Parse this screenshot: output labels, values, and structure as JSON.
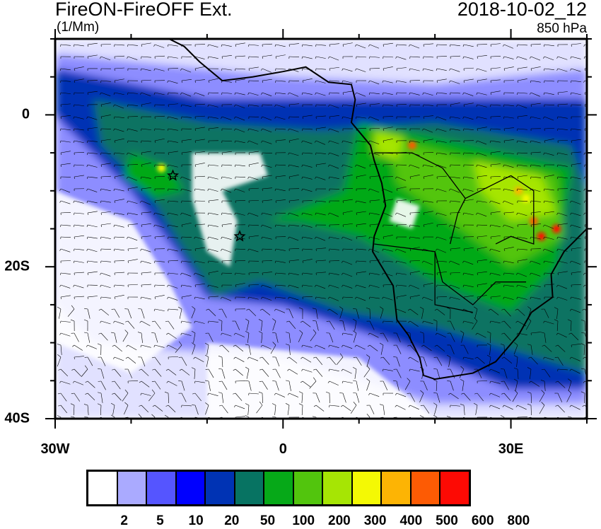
{
  "title": "FireON-FireOFF Ext.",
  "units": "(1/Mm)",
  "datetime": "2018-10-02_12",
  "level": "850 hPa",
  "map": {
    "lon_range": [
      -30,
      40
    ],
    "lat_range": [
      -40,
      10
    ],
    "x_ticks": [
      {
        "lon": -30,
        "label": "30W"
      },
      {
        "lon": 0,
        "label": "0"
      },
      {
        "lon": 30,
        "label": "30E"
      }
    ],
    "y_ticks": [
      {
        "lat": 0,
        "label": "0"
      },
      {
        "lat": -20,
        "label": "20S"
      },
      {
        "lat": -40,
        "label": "40S"
      }
    ],
    "markers": [
      {
        "type": "star",
        "lon": -14.5,
        "lat": -8
      },
      {
        "type": "star",
        "lon": -5.7,
        "lat": -16
      }
    ],
    "overlay": "wind barbs"
  },
  "colorbar": {
    "colors": [
      "#ffffff",
      "#aaaaff",
      "#5555ff",
      "#0000ff",
      "#0033b4",
      "#077362",
      "#06a918",
      "#52c50d",
      "#a6e504",
      "#f4f904",
      "#fdb404",
      "#fd5b04",
      "#fd0a04"
    ],
    "labels": [
      "2",
      "5",
      "10",
      "20",
      "50",
      "100",
      "200",
      "300",
      "400",
      "500",
      "600",
      "800"
    ]
  }
}
